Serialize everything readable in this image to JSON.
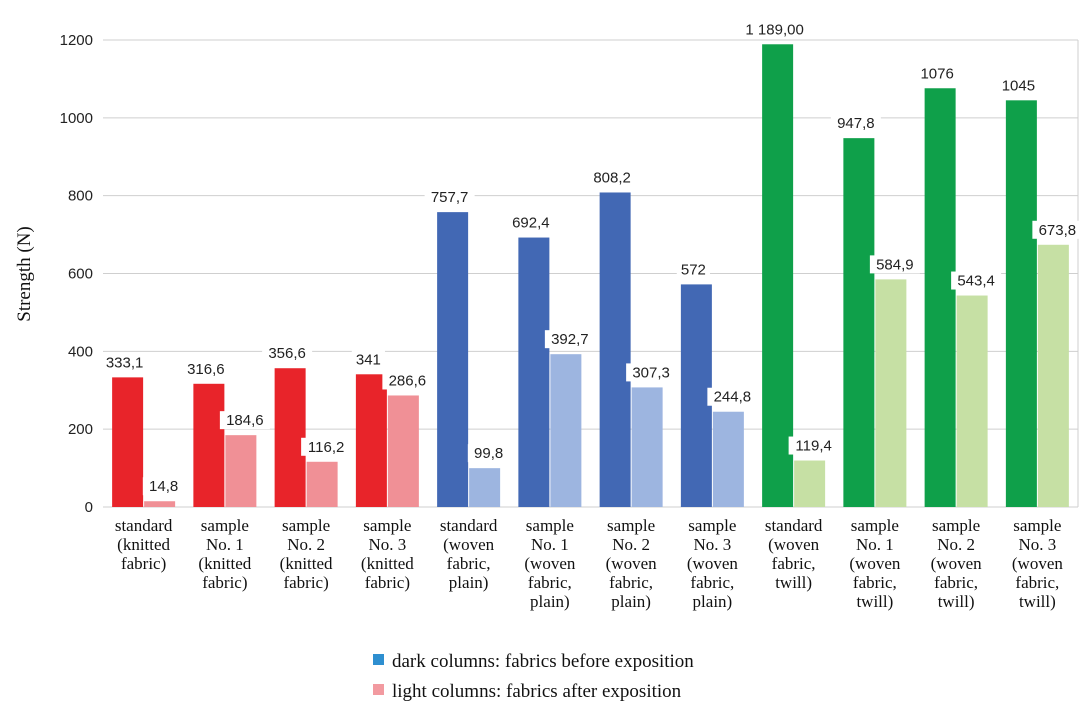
{
  "chart_data": {
    "type": "bar",
    "ylabel": "Strength (N)",
    "ylim": [
      0,
      1200
    ],
    "yticks": [
      "0",
      "200",
      "400",
      "600",
      "800",
      "1000",
      "1200"
    ],
    "grid": true,
    "categories": [
      [
        "standard",
        "(knitted",
        "fabric)"
      ],
      [
        "sample",
        "No. 1",
        "(knitted",
        "fabric)"
      ],
      [
        "sample",
        "No. 2",
        "(knitted",
        "fabric)"
      ],
      [
        "sample",
        "No. 3",
        "(knitted",
        "fabric)"
      ],
      [
        "standard",
        "(woven",
        "fabric,",
        "plain)"
      ],
      [
        "sample",
        "No. 1",
        "(woven",
        "fabric,",
        "plain)"
      ],
      [
        "sample",
        "No. 2",
        "(woven",
        "fabric,",
        "plain)"
      ],
      [
        "sample",
        "No. 3",
        "(woven",
        "fabric,",
        "plain)"
      ],
      [
        "standard",
        "(woven",
        "fabric,",
        "twill)"
      ],
      [
        "sample",
        "No. 1",
        "(woven",
        "fabric,",
        "twill)"
      ],
      [
        "sample",
        "No. 2",
        "(woven",
        "fabric,",
        "twill)"
      ],
      [
        "sample",
        "No. 3",
        "(woven",
        "fabric,",
        "twill)"
      ]
    ],
    "series": [
      {
        "name": "dark columns: fabrics before exposition",
        "values": [
          333.1,
          316.6,
          356.6,
          341,
          757.7,
          692.4,
          808.2,
          572,
          1189.0,
          947.8,
          1076,
          1045
        ],
        "labels": [
          "333,1",
          "316,6",
          "356,6",
          "341",
          "757,7",
          "692,4",
          "808,2",
          "572",
          "1 189,00",
          "947,8",
          "1076",
          "1045"
        ],
        "colors": [
          "#e8242a",
          "#e8242a",
          "#e8242a",
          "#e8242a",
          "#4268b4",
          "#4268b4",
          "#4268b4",
          "#4268b4",
          "#0fa04a",
          "#0fa04a",
          "#0fa04a",
          "#0fa04a"
        ],
        "legend_color": "#2e8fd0"
      },
      {
        "name": "light columns: fabrics after exposition",
        "values": [
          14.8,
          184.6,
          116.2,
          286.6,
          99.8,
          392.7,
          307.3,
          244.8,
          119.4,
          584.9,
          543.4,
          673.8
        ],
        "labels": [
          "14,8",
          "184,6",
          "116,2",
          "286,6",
          "99,8",
          "392,7",
          "307,3",
          "244,8",
          "119,4",
          "584,9",
          "543,4",
          "673,8"
        ],
        "colors": [
          "#f09096",
          "#f09096",
          "#f09096",
          "#f09096",
          "#9db5e0",
          "#9db5e0",
          "#9db5e0",
          "#9db5e0",
          "#c6e0a4",
          "#c6e0a4",
          "#c6e0a4",
          "#c6e0a4"
        ],
        "legend_color": "#f29aa0"
      }
    ],
    "legend_position": "bottom-center"
  }
}
